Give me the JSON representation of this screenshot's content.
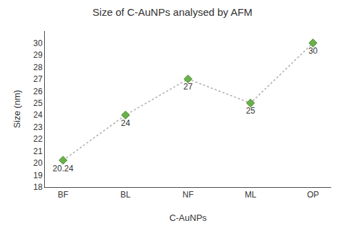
{
  "chart_data": {
    "type": "line",
    "title": "Size of C-AuNPs analysed by AFM",
    "xlabel": "C-AuNPs",
    "ylabel": "Size (nm)",
    "categories": [
      "BF",
      "BL",
      "NF",
      "ML",
      "OP"
    ],
    "values": [
      20.24,
      24,
      27,
      25,
      30
    ],
    "color": "#6ab04c",
    "marker": "diamond",
    "line_style": "dotted",
    "data_labels": true,
    "grid": false,
    "ylim": [
      18,
      31
    ],
    "yticks": [
      18,
      19,
      20,
      21,
      22,
      23,
      24,
      25,
      26,
      27,
      28,
      29,
      30
    ]
  }
}
